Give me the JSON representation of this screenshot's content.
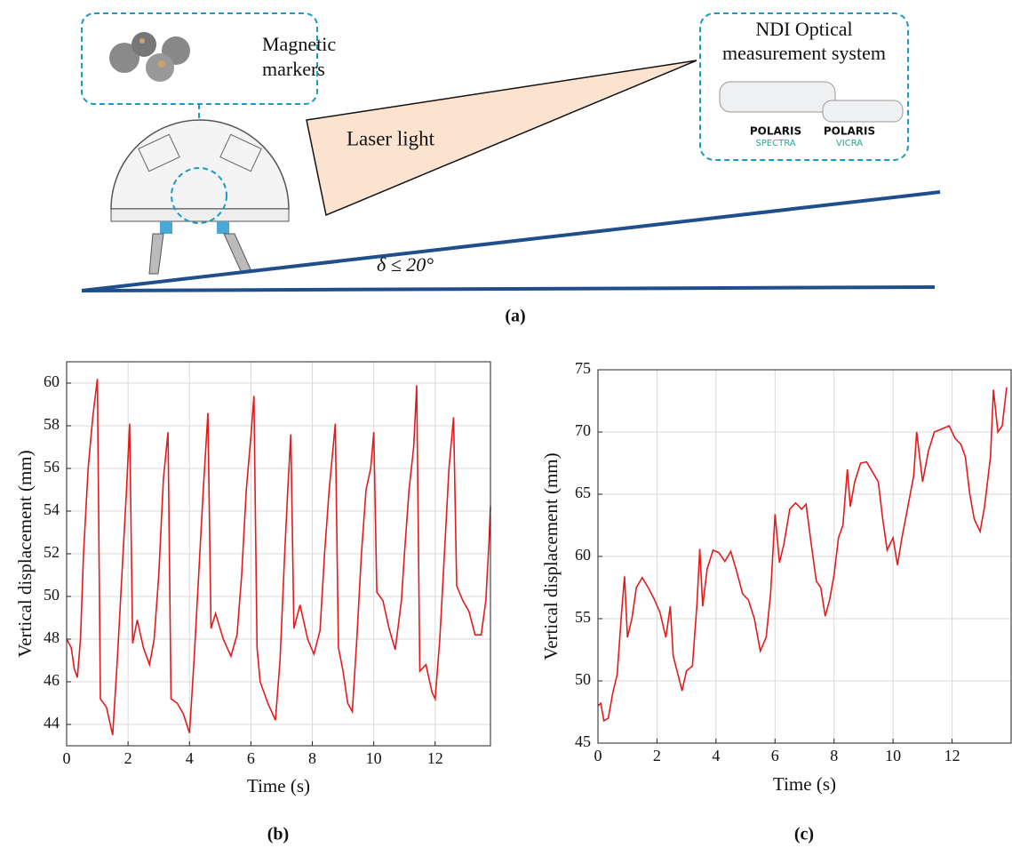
{
  "diagram": {
    "markers_label": [
      "Magnetic",
      "markers"
    ],
    "laser_label": "Laser light",
    "ndi_label": [
      "NDI Optical",
      "measurement system"
    ],
    "angle_label": "δ ≤ 20°",
    "caption": "(a)",
    "logos": [
      "POLARIS",
      "SPECTRA",
      "POLARIS",
      "VICRA"
    ]
  },
  "chart_data": [
    {
      "type": "line",
      "caption": "(b)",
      "x_label": "Time (s)",
      "y_label": "Vertical displacement (mm)",
      "color": "#e41a1c",
      "grid": true,
      "xlim": [
        0,
        13.8
      ],
      "ylim": [
        43,
        61
      ],
      "xticks": [
        0,
        2,
        4,
        6,
        8,
        10,
        12
      ],
      "yticks": [
        44,
        46,
        48,
        50,
        52,
        54,
        56,
        58,
        60
      ],
      "x": [
        0,
        0.15,
        0.25,
        0.35,
        0.45,
        0.55,
        0.7,
        0.85,
        1.0,
        1.1,
        1.3,
        1.5,
        1.65,
        1.8,
        1.95,
        2.05,
        2.15,
        2.3,
        2.5,
        2.7,
        2.85,
        3.0,
        3.15,
        3.3,
        3.4,
        3.6,
        3.8,
        4.0,
        4.15,
        4.3,
        4.45,
        4.6,
        4.7,
        4.85,
        5.1,
        5.35,
        5.55,
        5.7,
        5.85,
        6.0,
        6.1,
        6.2,
        6.3,
        6.55,
        6.8,
        6.95,
        7.1,
        7.2,
        7.3,
        7.4,
        7.6,
        7.85,
        8.05,
        8.25,
        8.4,
        8.55,
        8.75,
        8.85,
        9.0,
        9.15,
        9.3,
        9.45,
        9.6,
        9.75,
        9.9,
        10.0,
        10.1,
        10.3,
        10.5,
        10.7,
        10.9,
        11.0,
        11.15,
        11.3,
        11.4,
        11.5,
        11.7,
        11.9,
        12.0,
        12.15,
        12.3,
        12.45,
        12.6,
        12.7,
        12.9,
        13.1,
        13.3,
        13.5,
        13.65,
        13.75,
        13.8
      ],
      "values": [
        48,
        47.6,
        46.6,
        46.2,
        48,
        52,
        56,
        58.4,
        60.2,
        45.2,
        44.8,
        43.5,
        47,
        51,
        55,
        58.1,
        47.8,
        48.9,
        47.6,
        46.8,
        48,
        51,
        55.5,
        57.7,
        45.2,
        45,
        44.5,
        43.6,
        47,
        51,
        55,
        58.6,
        48.5,
        49.2,
        48,
        47.2,
        48.2,
        51,
        55,
        57.5,
        59.4,
        47.6,
        46,
        45,
        44.2,
        47,
        52,
        55,
        57.6,
        48.5,
        49.6,
        48,
        47.3,
        48.4,
        52,
        55,
        58.1,
        47.6,
        46.5,
        45,
        44.6,
        48,
        52,
        55,
        56,
        57.7,
        50.2,
        49.8,
        48.5,
        47.5,
        49.8,
        52,
        55,
        57,
        59.9,
        46.5,
        46.8,
        45.5,
        45.2,
        48,
        52,
        56,
        58.4,
        50.5,
        49.8,
        49.3,
        48.2,
        48.2,
        49.8,
        52.5,
        54.2
      ]
    },
    {
      "type": "line",
      "caption": "(c)",
      "x_label": "Time (s)",
      "y_label": "Vertical displacement (mm)",
      "color": "#e41a1c",
      "grid": true,
      "xlim": [
        0,
        14
      ],
      "ylim": [
        45,
        75
      ],
      "xticks": [
        0,
        2,
        4,
        6,
        8,
        10,
        12
      ],
      "yticks": [
        45,
        50,
        55,
        60,
        65,
        70,
        75
      ],
      "x": [
        0,
        0.1,
        0.2,
        0.35,
        0.5,
        0.65,
        0.8,
        0.9,
        1.0,
        1.15,
        1.3,
        1.5,
        1.7,
        1.9,
        2.1,
        2.3,
        2.45,
        2.55,
        2.7,
        2.85,
        3.0,
        3.2,
        3.35,
        3.45,
        3.55,
        3.7,
        3.9,
        4.1,
        4.3,
        4.5,
        4.7,
        4.9,
        5.1,
        5.3,
        5.5,
        5.7,
        5.85,
        6.0,
        6.15,
        6.3,
        6.5,
        6.7,
        6.9,
        7.05,
        7.2,
        7.4,
        7.55,
        7.7,
        7.85,
        8.0,
        8.15,
        8.3,
        8.45,
        8.55,
        8.7,
        8.9,
        9.1,
        9.3,
        9.5,
        9.65,
        9.8,
        10.0,
        10.15,
        10.3,
        10.5,
        10.7,
        10.8,
        11.0,
        11.2,
        11.4,
        11.6,
        11.9,
        12.1,
        12.3,
        12.45,
        12.6,
        12.75,
        12.95,
        13.1,
        13.3,
        13.4,
        13.55,
        13.7,
        13.85
      ],
      "values": [
        48,
        48.2,
        46.8,
        47,
        49,
        50.5,
        55.5,
        58.4,
        53.5,
        55,
        57.5,
        58.3,
        57.5,
        56.6,
        55.5,
        53.5,
        56,
        52,
        50.6,
        49.2,
        50.8,
        51.2,
        56,
        60.6,
        56,
        59,
        60.5,
        60.3,
        59.6,
        60.4,
        58.8,
        57,
        56.5,
        55,
        52.4,
        53.5,
        57,
        63.4,
        59.5,
        61,
        63.8,
        64.3,
        63.8,
        64.2,
        61.5,
        58,
        57.5,
        55.2,
        56.5,
        58.5,
        61.5,
        62.5,
        67,
        64,
        66,
        67.5,
        67.6,
        66.8,
        66,
        63,
        60.5,
        61.5,
        59.3,
        61.5,
        64,
        66.5,
        70,
        66,
        68.5,
        70,
        70.2,
        70.5,
        69.5,
        69,
        68,
        65,
        63,
        62,
        64,
        68,
        73.4,
        70,
        70.5,
        73.6
      ]
    }
  ]
}
